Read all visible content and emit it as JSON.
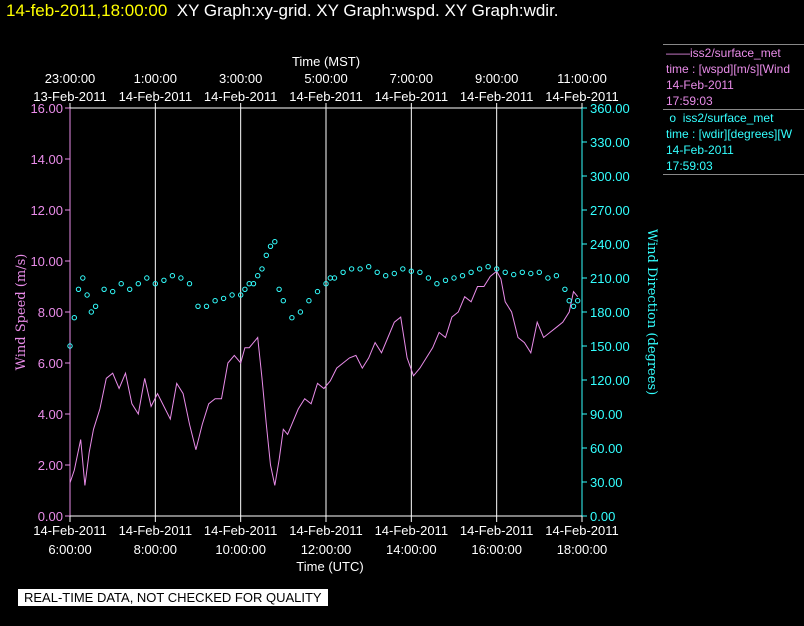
{
  "header": {
    "timestamp": "14-feb-2011,18:00:00",
    "graphs": "XY Graph:xy-grid.  XY Graph:wspd.  XY Graph:wdir."
  },
  "legend": [
    {
      "marker": "——",
      "source": "iss2/surface_met",
      "var": "time : [wspd][m/s][Wind",
      "date": "14-Feb-2011",
      "time": "17:59:03"
    },
    {
      "marker": "o",
      "source": "iss2/surface_met",
      "var": "time : [wdir][degrees][W",
      "date": "14-Feb-2011",
      "time": "17:59:03"
    }
  ],
  "footer_note": "REAL-TIME DATA, NOT CHECKED FOR QUALITY",
  "colors": {
    "wspd": "#e98ce9",
    "wdir": "#33ffff",
    "grid": "#ffffff",
    "bg": "#000000",
    "banner_time": "#ffff00"
  },
  "chart_data": {
    "type": "line",
    "top_axis": {
      "label": "Time (MST)",
      "ticks": [
        {
          "time": "23:00:00",
          "date": "13-Feb-2011"
        },
        {
          "time": "1:00:00",
          "date": "14-Feb-2011"
        },
        {
          "time": "3:00:00",
          "date": "14-Feb-2011"
        },
        {
          "time": "5:00:00",
          "date": "14-Feb-2011"
        },
        {
          "time": "7:00:00",
          "date": "14-Feb-2011"
        },
        {
          "time": "9:00:00",
          "date": "14-Feb-2011"
        },
        {
          "time": "11:00:00",
          "date": "14-Feb-2011"
        }
      ]
    },
    "bottom_axis": {
      "label": "Time (UTC)",
      "ticks": [
        {
          "date": "14-Feb-2011",
          "time": "6:00:00"
        },
        {
          "date": "14-Feb-2011",
          "time": "8:00:00"
        },
        {
          "date": "14-Feb-2011",
          "time": "10:00:00"
        },
        {
          "date": "14-Feb-2011",
          "time": "12:00:00"
        },
        {
          "date": "14-Feb-2011",
          "time": "14:00:00"
        },
        {
          "date": "14-Feb-2011",
          "time": "16:00:00"
        },
        {
          "date": "14-Feb-2011",
          "time": "18:00:00"
        }
      ],
      "range_hours_utc": [
        6.0,
        18.0
      ]
    },
    "left_axis": {
      "label": "Wind Speed (m/s)",
      "ticks": [
        "0.00",
        "2.00",
        "4.00",
        "6.00",
        "8.00",
        "10.00",
        "12.00",
        "14.00",
        "16.00"
      ],
      "range": [
        0,
        16
      ]
    },
    "right_axis": {
      "label": "Wind Direction (degrees)",
      "ticks": [
        "0.00",
        "30.00",
        "60.00",
        "90.00",
        "120.00",
        "150.00",
        "180.00",
        "210.00",
        "240.00",
        "270.00",
        "300.00",
        "330.00",
        "360.00"
      ],
      "range": [
        0,
        360
      ]
    },
    "grid": "vertical lines at labeled times",
    "series": [
      {
        "kind": "line",
        "x_utc_hours": [
          6.0,
          6.1,
          6.25,
          6.35,
          6.45,
          6.55,
          6.7,
          6.85,
          7.0,
          7.15,
          7.3,
          7.45,
          7.6,
          7.75,
          7.9,
          8.05,
          8.2,
          8.35,
          8.5,
          8.65,
          8.8,
          8.95,
          9.1,
          9.25,
          9.4,
          9.55,
          9.7,
          9.85,
          10.0,
          10.1,
          10.2,
          10.3,
          10.4,
          10.5,
          10.6,
          10.7,
          10.8,
          10.9,
          11.0,
          11.1,
          11.2,
          11.35,
          11.5,
          11.65,
          11.8,
          11.95,
          12.1,
          12.25,
          12.4,
          12.55,
          12.7,
          12.85,
          13.0,
          13.15,
          13.3,
          13.45,
          13.6,
          13.75,
          13.9,
          14.05,
          14.2,
          14.35,
          14.5,
          14.65,
          14.8,
          14.95,
          15.1,
          15.25,
          15.4,
          15.55,
          15.7,
          15.85,
          16.0,
          16.1,
          16.2,
          16.35,
          16.5,
          16.65,
          16.8,
          16.95,
          17.1,
          17.25,
          17.4,
          17.55,
          17.7,
          17.8,
          17.9
        ],
        "values": [
          1.3,
          1.8,
          3.0,
          1.2,
          2.5,
          3.4,
          4.2,
          5.4,
          5.6,
          5.0,
          5.6,
          4.4,
          4.0,
          5.4,
          4.3,
          4.8,
          4.3,
          3.8,
          5.2,
          4.8,
          3.6,
          2.6,
          3.6,
          4.4,
          4.6,
          4.6,
          6.0,
          6.3,
          6.0,
          6.6,
          6.6,
          6.8,
          7.0,
          5.4,
          3.6,
          2.0,
          1.2,
          2.2,
          3.4,
          3.2,
          3.6,
          4.2,
          4.6,
          4.4,
          5.2,
          5.0,
          5.3,
          5.8,
          6.0,
          6.2,
          6.3,
          5.8,
          6.2,
          6.8,
          6.4,
          7.0,
          7.6,
          7.8,
          6.2,
          5.5,
          5.8,
          6.2,
          6.6,
          7.2,
          7.0,
          7.8,
          8.0,
          8.6,
          8.4,
          9.0,
          9.0,
          9.4,
          9.6,
          9.3,
          8.4,
          8.0,
          7.0,
          6.8,
          6.4,
          7.6,
          7.0,
          7.2,
          7.4,
          7.6,
          8.0,
          8.8,
          8.6
        ]
      },
      {
        "kind": "scatter",
        "x_utc_hours": [
          6.0,
          6.1,
          6.2,
          6.3,
          6.4,
          6.5,
          6.6,
          6.8,
          7.0,
          7.2,
          7.4,
          7.6,
          7.8,
          8.0,
          8.2,
          8.4,
          8.6,
          8.8,
          9.0,
          9.2,
          9.4,
          9.6,
          9.8,
          10.0,
          10.1,
          10.2,
          10.3,
          10.4,
          10.5,
          10.6,
          10.7,
          10.8,
          10.9,
          11.0,
          11.2,
          11.4,
          11.6,
          11.8,
          12.0,
          12.1,
          12.2,
          12.4,
          12.6,
          12.8,
          13.0,
          13.2,
          13.4,
          13.6,
          13.8,
          14.0,
          14.2,
          14.4,
          14.6,
          14.8,
          15.0,
          15.2,
          15.4,
          15.6,
          15.8,
          16.0,
          16.2,
          16.4,
          16.6,
          16.8,
          17.0,
          17.2,
          17.4,
          17.6,
          17.7,
          17.8,
          17.9
        ],
        "values": [
          150,
          175,
          200,
          210,
          195,
          180,
          185,
          200,
          198,
          205,
          200,
          205,
          210,
          205,
          208,
          212,
          210,
          205,
          185,
          185,
          190,
          192,
          195,
          195,
          200,
          205,
          205,
          212,
          218,
          230,
          238,
          242,
          200,
          190,
          175,
          180,
          190,
          198,
          205,
          210,
          210,
          215,
          218,
          218,
          220,
          215,
          212,
          214,
          218,
          216,
          215,
          210,
          205,
          208,
          210,
          212,
          215,
          218,
          220,
          218,
          215,
          213,
          215,
          214,
          215,
          210,
          212,
          200,
          190,
          185,
          190
        ]
      }
    ]
  }
}
